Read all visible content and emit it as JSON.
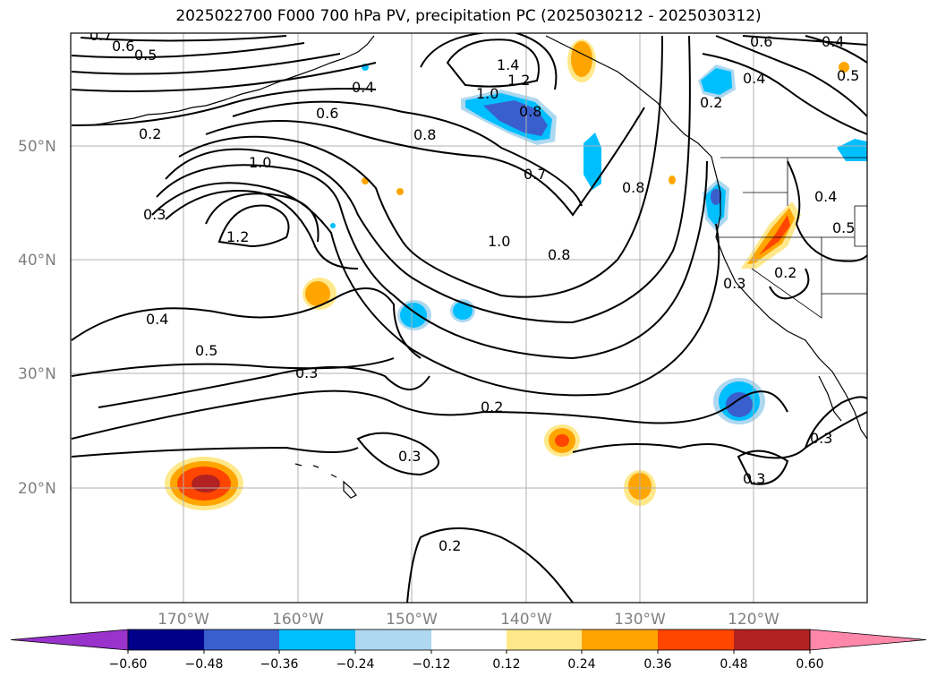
{
  "title": "2025022700 F000 700 hPa PV, precipitation PC (2025030212 - 2025030312)",
  "lat_labels": [
    "50°N",
    "40°N",
    "30°N",
    "20°N"
  ],
  "lon_labels": [
    "170°W",
    "160°W",
    "150°W",
    "140°W",
    "130°W",
    "120°W"
  ],
  "colorbar": {
    "ticks": [
      "−0.60",
      "−0.48",
      "−0.36",
      "−0.24",
      "−0.12",
      "0.12",
      "0.24",
      "0.36",
      "0.48",
      "0.60"
    ],
    "colors": [
      "#9933cc",
      "#00008b",
      "#3a5fcd",
      "#00bfff",
      "#add8f0",
      "#ffffff",
      "#ffe88a",
      "#ffa500",
      "#ff4500",
      "#b22222",
      "#ff88aa"
    ]
  },
  "contour_labels": [
    "0.7",
    "0.6",
    "0.5",
    "0.4",
    "0.2",
    "0.6",
    "0.8",
    "1.0",
    "1.2",
    "0.3",
    "1.4",
    "1.2",
    "1.0",
    "0.8",
    "0.7",
    "0.8",
    "1.0",
    "0.8",
    "0.4",
    "0.5",
    "0.3",
    "0.2",
    "0.6",
    "0.4",
    "0.4",
    "0.5",
    "0.5",
    "0.4",
    "0.2",
    "0.2",
    "0.3",
    "0.3",
    "0.3",
    "0.3",
    "0.2"
  ]
}
